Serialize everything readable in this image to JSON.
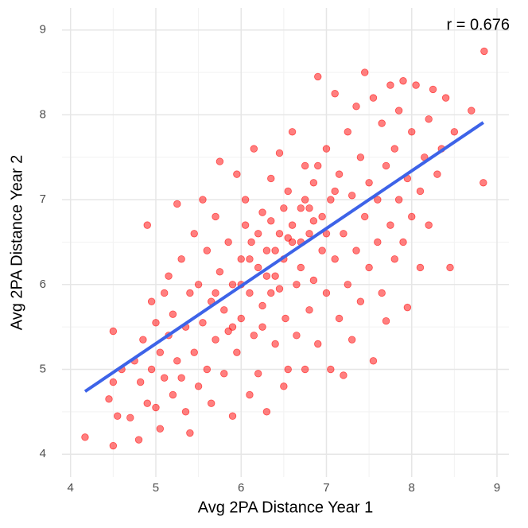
{
  "chart_data": {
    "type": "scatter",
    "xlabel": "Avg 2PA Distance Year 1",
    "ylabel": "Avg 2PA Distance Year 2",
    "annotation": "r = 0.676",
    "xlim": [
      3.9,
      9.14
    ],
    "ylim": [
      3.73,
      9.26
    ],
    "xticks": [
      4,
      5,
      6,
      7,
      8,
      9
    ],
    "yticks": [
      4,
      5,
      6,
      7,
      8,
      9
    ],
    "xminor_ticks": [
      4.5,
      5.5,
      6.5,
      7.5,
      8.5
    ],
    "yminor_ticks": [
      4.5,
      5.5,
      6.5,
      7.5,
      8.5
    ],
    "grid": true,
    "color": "#ff0000",
    "x": [
      4.17,
      4.5,
      4.45,
      4.5,
      4.55,
      4.6,
      4.5,
      4.7,
      4.75,
      4.8,
      4.82,
      4.85,
      4.9,
      4.9,
      4.95,
      4.95,
      5.0,
      5.0,
      5.05,
      5.05,
      5.1,
      5.1,
      5.15,
      5.15,
      5.2,
      5.2,
      5.25,
      5.25,
      5.3,
      5.3,
      5.35,
      5.35,
      5.4,
      5.4,
      5.45,
      5.45,
      5.5,
      5.5,
      5.55,
      5.55,
      5.6,
      5.6,
      5.65,
      5.65,
      5.7,
      5.7,
      5.75,
      5.75,
      5.8,
      5.8,
      5.85,
      5.85,
      5.9,
      5.9,
      5.95,
      5.95,
      6.0,
      6.0,
      6.05,
      6.05,
      6.1,
      6.1,
      6.12,
      6.15,
      6.15,
      6.2,
      6.2,
      6.25,
      6.25,
      6.3,
      6.3,
      6.35,
      6.35,
      6.4,
      6.4,
      6.45,
      6.45,
      6.5,
      6.5,
      6.52,
      6.55,
      6.55,
      6.6,
      6.6,
      6.65,
      6.65,
      6.7,
      6.7,
      6.75,
      6.75,
      6.8,
      6.8,
      6.85,
      6.85,
      6.9,
      6.9,
      6.95,
      6.95,
      7.0,
      7.0,
      7.05,
      7.05,
      7.1,
      7.1,
      7.15,
      7.15,
      7.2,
      7.2,
      7.25,
      7.25,
      7.3,
      7.3,
      7.35,
      7.35,
      7.4,
      7.4,
      7.45,
      7.45,
      7.5,
      7.5,
      7.55,
      7.55,
      7.6,
      7.6,
      7.65,
      7.65,
      7.7,
      7.7,
      7.75,
      7.75,
      7.8,
      7.8,
      7.85,
      7.85,
      7.9,
      7.9,
      7.95,
      7.95,
      8.0,
      8.0,
      8.05,
      8.1,
      8.1,
      8.15,
      8.2,
      8.2,
      8.25,
      8.3,
      8.35,
      8.4,
      8.45,
      8.5,
      8.7,
      8.84,
      8.85,
      6.0,
      6.2,
      6.4,
      6.6,
      6.8,
      6.3,
      6.5,
      6.7,
      6.9,
      7.0,
      6.1,
      5.9,
      5.7,
      6.55,
      6.45,
      6.35,
      6.75,
      6.85,
      7.1,
      6.25
    ],
    "values": [
      4.2,
      4.1,
      4.65,
      4.85,
      4.45,
      5.0,
      5.45,
      4.43,
      5.1,
      4.17,
      4.85,
      5.35,
      6.7,
      4.6,
      5.8,
      5.0,
      4.55,
      5.55,
      5.2,
      4.3,
      5.9,
      4.9,
      5.4,
      6.1,
      4.7,
      5.65,
      6.95,
      5.1,
      4.9,
      6.3,
      5.5,
      4.5,
      4.25,
      5.9,
      6.6,
      5.2,
      4.8,
      6.0,
      5.55,
      7.0,
      6.4,
      5.0,
      5.8,
      4.6,
      6.8,
      5.35,
      6.15,
      7.45,
      5.7,
      4.95,
      6.5,
      5.45,
      6.0,
      4.45,
      7.3,
      5.2,
      6.3,
      5.6,
      7.0,
      6.7,
      4.7,
      5.9,
      6.5,
      7.6,
      5.4,
      6.2,
      4.95,
      6.85,
      5.75,
      4.5,
      6.4,
      7.25,
      5.9,
      6.1,
      5.3,
      7.55,
      6.6,
      4.8,
      6.3,
      5.6,
      7.1,
      5.0,
      6.5,
      7.8,
      6.0,
      5.4,
      6.9,
      6.2,
      7.4,
      5.0,
      6.6,
      5.7,
      7.2,
      6.05,
      8.45,
      5.3,
      6.8,
      6.4,
      7.6,
      5.9,
      7.0,
      5.0,
      6.3,
      8.25,
      7.3,
      5.6,
      4.93,
      6.6,
      7.8,
      6.0,
      7.05,
      5.35,
      6.4,
      8.1,
      7.5,
      5.8,
      8.5,
      6.8,
      6.2,
      7.2,
      8.2,
      5.1,
      7.0,
      6.5,
      7.9,
      5.9,
      5.57,
      7.4,
      8.35,
      6.7,
      7.6,
      6.3,
      8.05,
      7.0,
      8.4,
      6.5,
      5.73,
      7.25,
      7.8,
      6.8,
      8.35,
      7.1,
      6.2,
      7.5,
      6.7,
      7.95,
      8.3,
      7.3,
      7.6,
      8.2,
      6.2,
      7.8,
      8.05,
      7.2,
      8.75,
      6.0,
      6.6,
      6.4,
      6.7,
      6.9,
      6.1,
      6.9,
      6.5,
      7.4,
      6.6,
      6.3,
      5.5,
      5.9,
      6.55,
      5.95,
      6.75,
      7.0,
      6.75,
      7.1,
      5.5
    ],
    "trend_line": {
      "x": [
        4.17,
        8.84
      ],
      "values": [
        4.74,
        7.91
      ],
      "color": "#3d63e8"
    }
  }
}
